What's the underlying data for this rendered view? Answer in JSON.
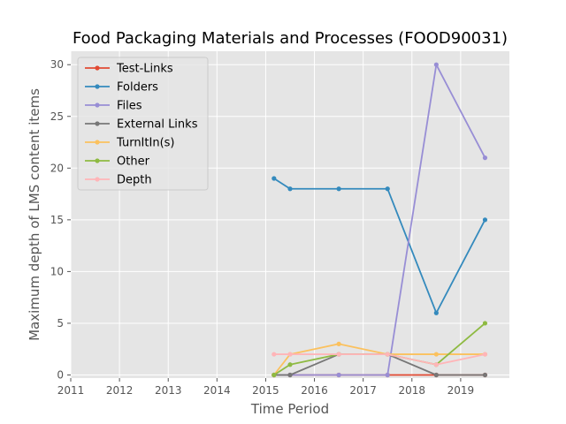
{
  "chart_data": {
    "type": "line",
    "title": "Food Packaging Materials and Processes (FOOD90031)",
    "xlabel": "Time Period",
    "ylabel": "Maximum depth of LMS content items",
    "xlim": [
      2011.0,
      2020.0
    ],
    "ylim": [
      -0.3,
      31.3
    ],
    "xticks": [
      2011,
      2012,
      2013,
      2014,
      2015,
      2016,
      2017,
      2018,
      2019
    ],
    "xtick_labels": [
      "2011",
      "2012",
      "2013",
      "2014",
      "2015",
      "2016",
      "2017",
      "2018",
      "2019"
    ],
    "yticks": [
      0,
      5,
      10,
      15,
      20,
      25,
      30
    ],
    "ytick_labels": [
      "0",
      "5",
      "10",
      "15",
      "20",
      "25",
      "30"
    ],
    "grid": true,
    "legend_position": "upper-left",
    "series": [
      {
        "name": "Test-Links",
        "color": "#E24A33",
        "x": [
          2015.17,
          2015.5,
          2016.5,
          2017.5,
          2018.5,
          2019.5
        ],
        "y": [
          0,
          0,
          0,
          0,
          0,
          0
        ]
      },
      {
        "name": "Folders",
        "color": "#348ABD",
        "x": [
          2015.17,
          2015.5,
          2016.5,
          2017.5,
          2018.5,
          2019.5
        ],
        "y": [
          19,
          18,
          18,
          18,
          6,
          15
        ]
      },
      {
        "name": "Files",
        "color": "#988ED5",
        "x": [
          2015.17,
          2015.5,
          2016.5,
          2017.5,
          2018.5,
          2019.5
        ],
        "y": [
          0,
          0,
          0,
          0,
          30,
          21
        ]
      },
      {
        "name": "External Links",
        "color": "#777777",
        "x": [
          2015.17,
          2015.5,
          2016.5,
          2017.5,
          2018.5,
          2019.5
        ],
        "y": [
          0,
          0,
          2,
          2,
          0,
          0
        ]
      },
      {
        "name": "TurnItIn(s)",
        "color": "#FBC15E",
        "x": [
          2015.17,
          2015.5,
          2016.5,
          2017.5,
          2018.5,
          2019.5
        ],
        "y": [
          0,
          2,
          3,
          2,
          2,
          2
        ]
      },
      {
        "name": "Other",
        "color": "#8EBA42",
        "x": [
          2015.17,
          2015.5,
          2016.5,
          2017.5,
          2018.5,
          2019.5
        ],
        "y": [
          0,
          1,
          2,
          2,
          1,
          5
        ]
      },
      {
        "name": "Depth",
        "color": "#FFB5B8",
        "x": [
          2015.17,
          2015.5,
          2016.5,
          2017.5,
          2018.5,
          2019.5
        ],
        "y": [
          2,
          2,
          2,
          2,
          1,
          2
        ]
      }
    ]
  }
}
